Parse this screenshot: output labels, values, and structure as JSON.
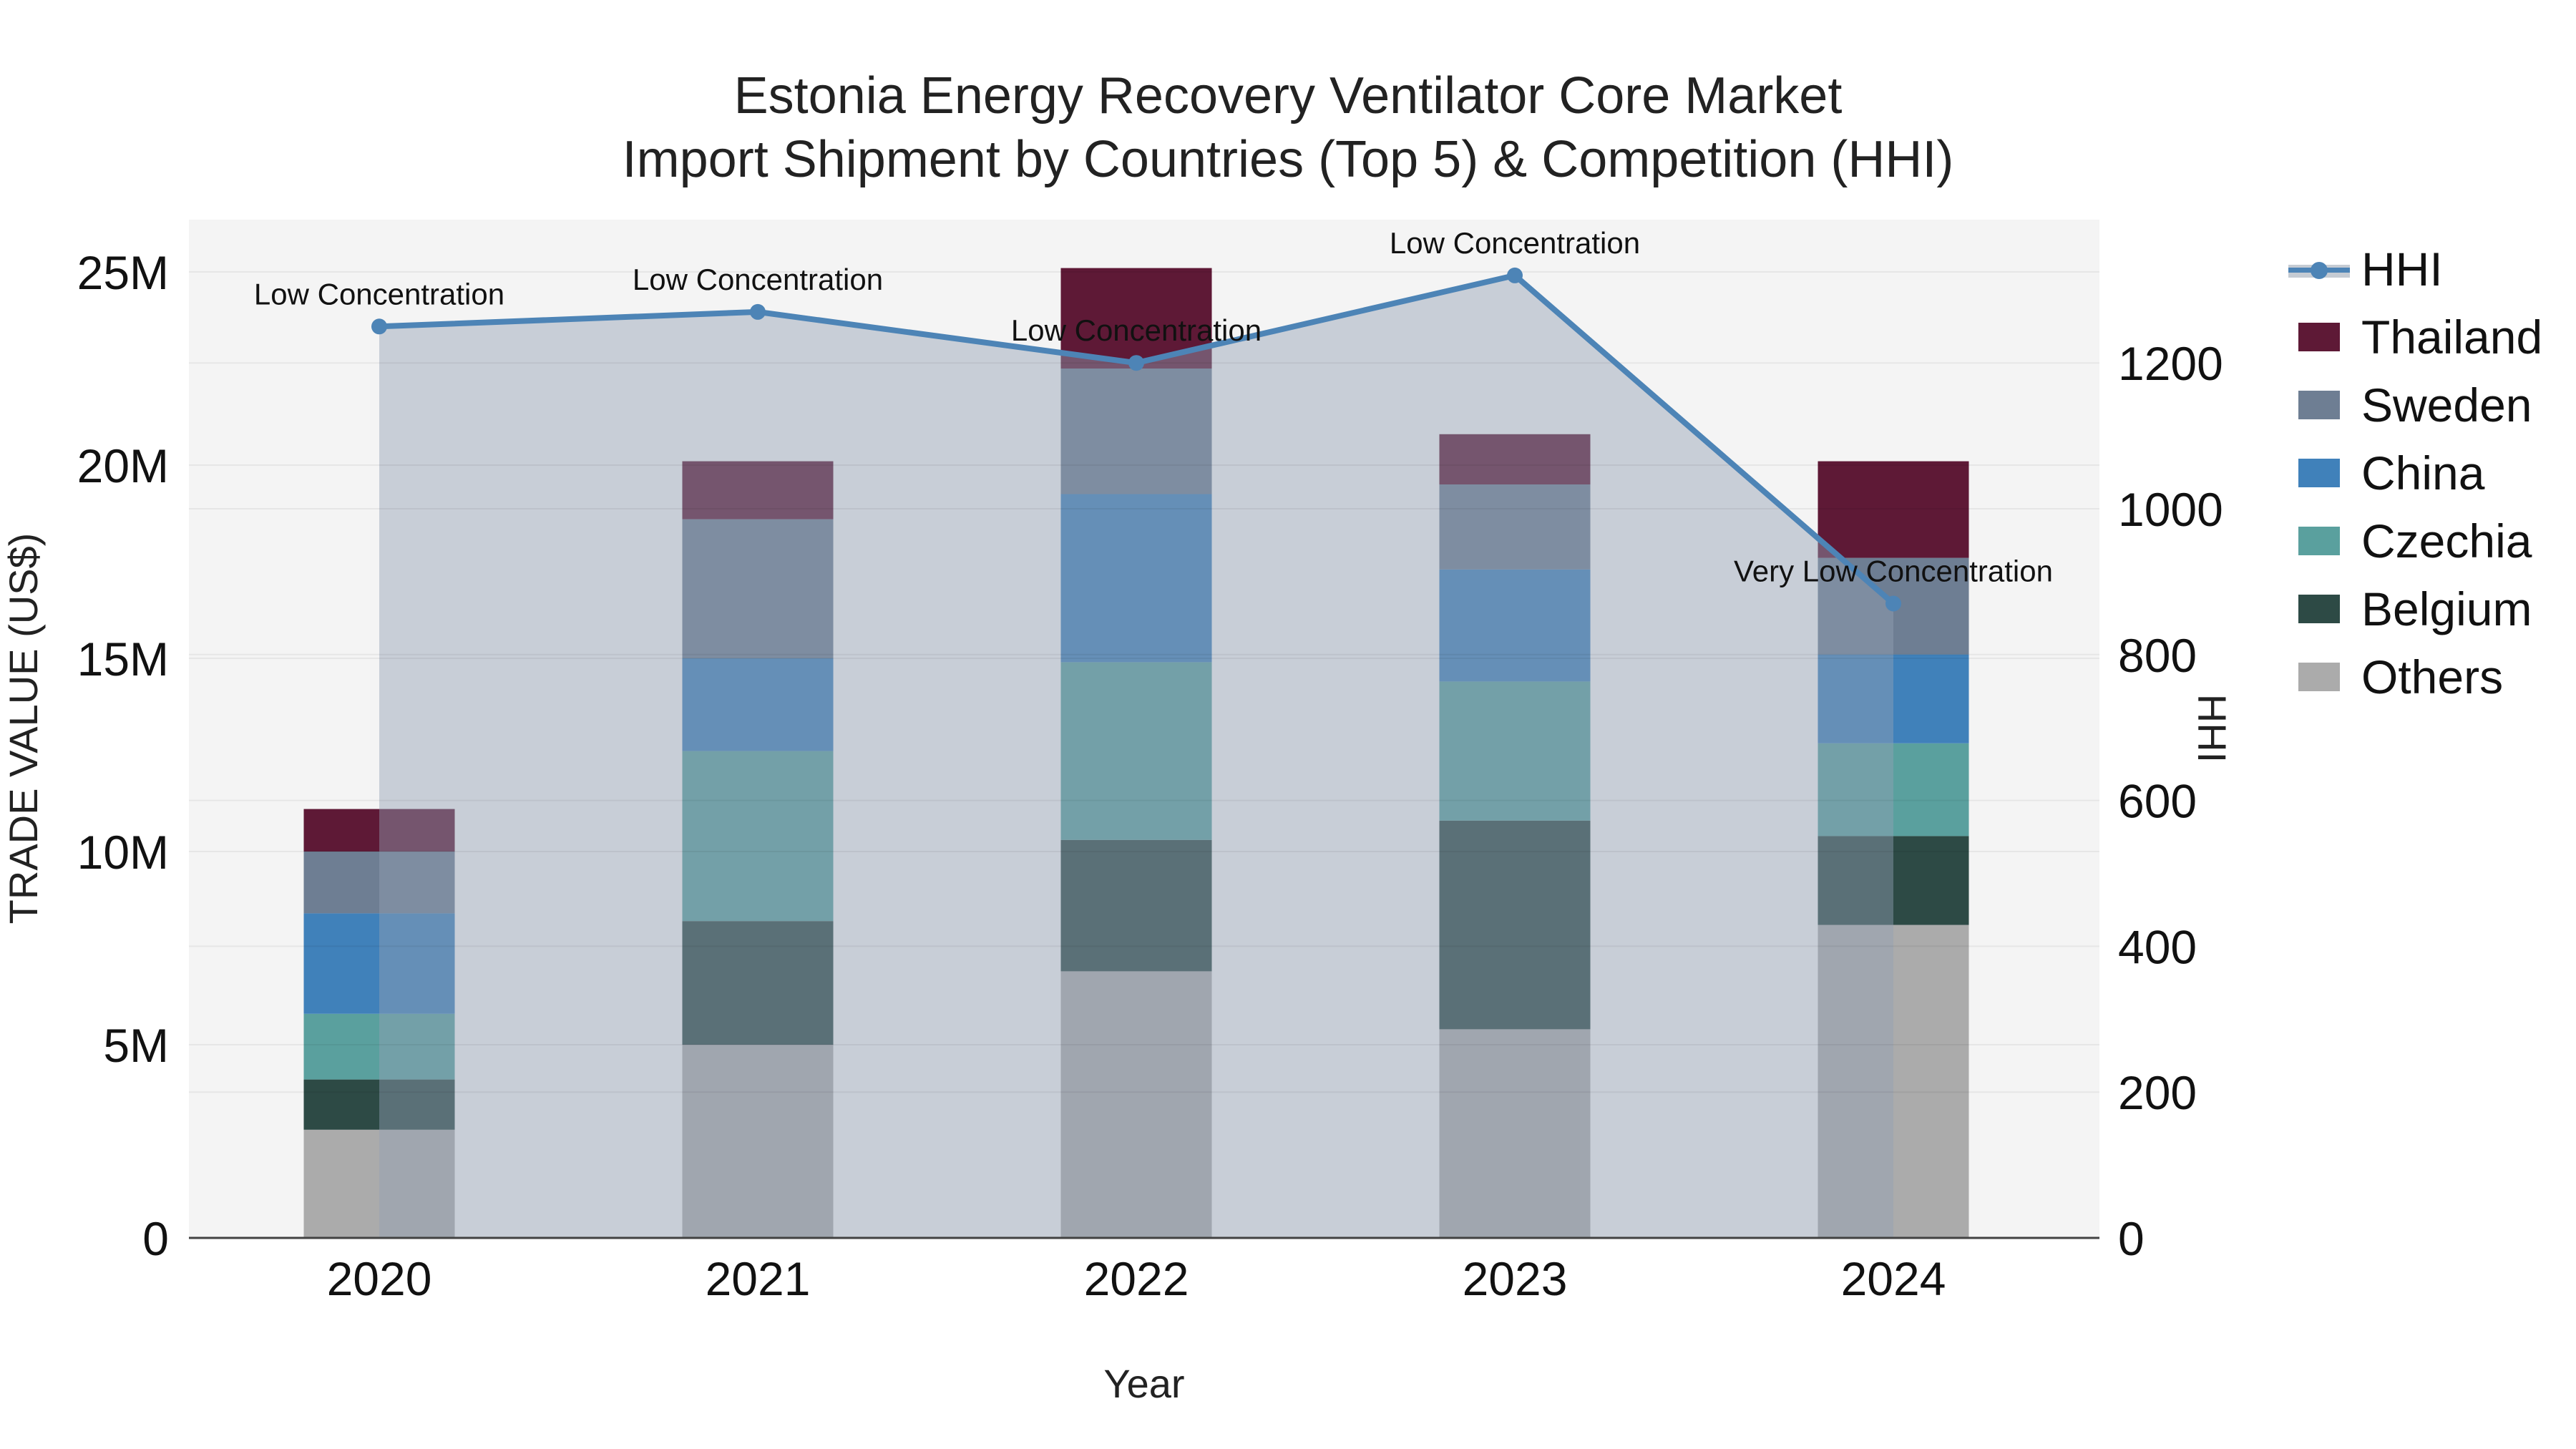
{
  "title": {
    "line1": "Estonia Energy Recovery Ventilator Core Market",
    "line2": "Import Shipment by Countries (Top 5) & Competition (HHI)"
  },
  "chart_data": {
    "type": "bar",
    "subtype": "stacked-bars-with-line-overlay",
    "x": {
      "label": "Year",
      "categories": [
        "2020",
        "2021",
        "2022",
        "2023",
        "2024"
      ]
    },
    "y_left": {
      "label": "TRADE VALUE (US$)",
      "unit": "millions USD",
      "tick_labels": [
        "0",
        "5M",
        "10M",
        "15M",
        "20M",
        "25M"
      ],
      "tick_values": [
        0,
        5,
        10,
        15,
        20,
        25
      ],
      "range": [
        0,
        26.4
      ]
    },
    "y_right": {
      "label": "HHI",
      "tick_labels": [
        "0",
        "200",
        "400",
        "600",
        "800",
        "1000",
        "1200"
      ],
      "tick_values": [
        0,
        200,
        400,
        600,
        800,
        1000,
        1200
      ],
      "range": [
        0,
        1396
      ]
    },
    "series": [
      {
        "name": "Others",
        "color": "#ababab",
        "values": [
          2.8,
          5.0,
          6.9,
          5.4,
          8.1
        ]
      },
      {
        "name": "Belgium",
        "color": "#2d4a45",
        "values": [
          1.3,
          3.2,
          3.4,
          5.4,
          2.3
        ]
      },
      {
        "name": "Czechia",
        "color": "#5aa09e",
        "values": [
          1.7,
          4.4,
          4.6,
          3.6,
          2.4
        ]
      },
      {
        "name": "China",
        "color": "#4081ba",
        "values": [
          2.6,
          2.4,
          4.35,
          2.9,
          2.3
        ]
      },
      {
        "name": "Sweden",
        "color": "#6e7e93",
        "values": [
          1.6,
          3.6,
          3.25,
          2.2,
          2.5
        ]
      },
      {
        "name": "Thailand",
        "color": "#5e1936",
        "values": [
          1.1,
          1.5,
          2.6,
          1.3,
          2.5
        ]
      }
    ],
    "totals": [
      11.1,
      20.1,
      25.1,
      20.8,
      20.1
    ],
    "hhi": {
      "name": "HHI",
      "values": [
        1250,
        1270,
        1200,
        1320,
        870
      ],
      "annotations": [
        "Low Concentration",
        "Low Concentration",
        "Low Concentration",
        "Low Concentration",
        "Very Low Concentration"
      ]
    },
    "legend_position": "right",
    "grid": true
  },
  "legend": [
    {
      "label": "HHI",
      "type": "line",
      "color": "#4d84b6"
    },
    {
      "label": "Thailand",
      "type": "box",
      "color": "#5e1936"
    },
    {
      "label": "Sweden",
      "type": "box",
      "color": "#6e7e93"
    },
    {
      "label": "China",
      "type": "box",
      "color": "#4081ba"
    },
    {
      "label": "Czechia",
      "type": "box",
      "color": "#5aa09e"
    },
    {
      "label": "Belgium",
      "type": "box",
      "color": "#2d4a45"
    },
    {
      "label": "Others",
      "type": "box",
      "color": "#ababab"
    }
  ],
  "colors": {
    "plot_bg": "#f4f4f4",
    "grid": "rgba(0,0,0,0.055)",
    "axis_line": "#424242",
    "hhi_line": "#4d84b6",
    "hhi_area": "rgba(147,160,180,0.45)",
    "hhi_band": "#c5cbd3",
    "title": "#222222",
    "tick": "#111111",
    "annotation": "#111111"
  }
}
